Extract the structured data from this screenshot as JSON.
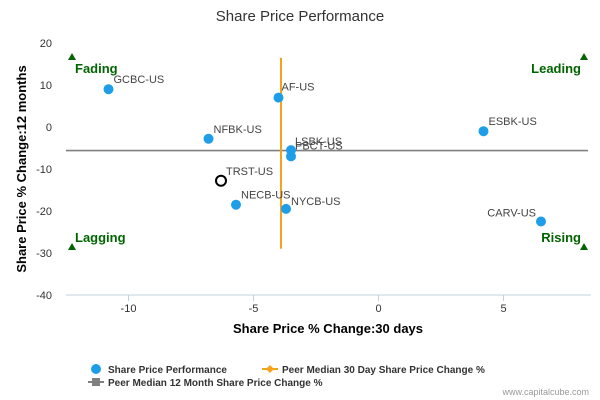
{
  "chart_data": {
    "type": "scatter",
    "title": "Share Price Performance",
    "xlabel": "Share Price % Change:30 days",
    "ylabel": "Share Price % Change:12 months",
    "xlim": [
      -12.5,
      8.5
    ],
    "ylim": [
      -40,
      20
    ],
    "x_ticks": [
      -10,
      -5,
      0,
      5
    ],
    "y_ticks": [
      -40,
      -30,
      -20,
      -10,
      0,
      10,
      20
    ],
    "grid": false,
    "series": [
      {
        "name": "Share Price Performance",
        "color": "#1e9ee8",
        "points": [
          {
            "label": "GCBC-US",
            "x": -10.8,
            "y": 9.0
          },
          {
            "label": "AF-US",
            "x": -4.0,
            "y": 7.0
          },
          {
            "label": "NFBK-US",
            "x": -6.8,
            "y": -2.8
          },
          {
            "label": "LSBK-US",
            "x": -3.5,
            "y": -5.5
          },
          {
            "label": "PBCT-US",
            "x": -3.5,
            "y": -7.0
          },
          {
            "label": "ESBK-US",
            "x": 4.2,
            "y": -1.0
          },
          {
            "label": "NECB-US",
            "x": -5.7,
            "y": -18.5
          },
          {
            "label": "NYCB-US",
            "x": -3.7,
            "y": -19.5
          },
          {
            "label": "CARV-US",
            "x": 6.5,
            "y": -22.5
          }
        ]
      },
      {
        "name": "TRST-US",
        "highlight": true,
        "color": "#000000",
        "points": [
          {
            "label": "TRST-US",
            "x": -6.3,
            "y": -12.8
          }
        ]
      }
    ],
    "reference_lines": {
      "peer_median_30d": {
        "name": "Peer Median 30 Day Share Price Change %",
        "x": -3.9,
        "y_from": -29,
        "y_to": 16.5,
        "color": "#f5a31a"
      },
      "peer_median_12m": {
        "name": "Peer Median 12 Month Share Price Change %",
        "y": -5.6,
        "color": "#808080"
      }
    },
    "quadrants": [
      {
        "label": "Fading",
        "position": "top-left"
      },
      {
        "label": "Leading",
        "position": "top-right"
      },
      {
        "label": "Lagging",
        "position": "bottom-left"
      },
      {
        "label": "Rising",
        "position": "bottom-right"
      }
    ],
    "legend_position": "bottom-left"
  },
  "legend": {
    "items": [
      {
        "label": "Share Price Performance",
        "kind": "dot",
        "color": "#1e9ee8"
      },
      {
        "label": "Peer Median 30 Day Share Price Change %",
        "kind": "line-diamond",
        "color": "#f5a31a"
      },
      {
        "label": "Peer Median 12 Month Share Price Change %",
        "kind": "line-square",
        "color": "#808080"
      }
    ]
  },
  "credit": "www.capitalcube.com"
}
